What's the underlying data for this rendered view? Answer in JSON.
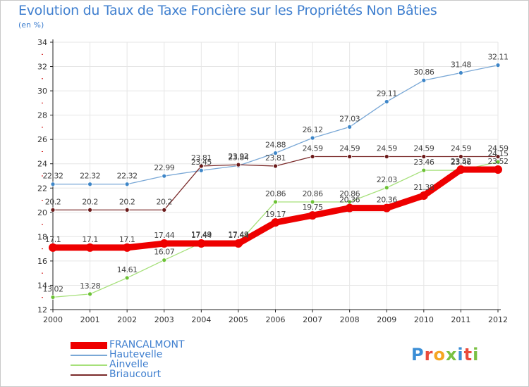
{
  "title": "Evolution du Taux de Taxe Foncière sur les Propriétés Non Bâties",
  "unit_label": "(en %)",
  "logo": {
    "text": "Proxiti",
    "colors": [
      "#3b8ed6",
      "#e94b3c",
      "#f5a623",
      "#7ac143",
      "#3b8ed6",
      "#e94b3c",
      "#7ac143"
    ]
  },
  "colors": {
    "grid": "#e6e6e6",
    "axis": "#222222",
    "tick_red": "#cc0000",
    "text": "#3f7fcf"
  },
  "legend": [
    {
      "label": "FRANCALMONT",
      "color": "#ee0000",
      "thickness": 10
    },
    {
      "label": "Hautevelle",
      "color": "#7aa8d6",
      "thickness": 2
    },
    {
      "label": "Ainvelle",
      "color": "#a6e07a",
      "thickness": 2
    },
    {
      "label": "Briaucourt",
      "color": "#7a2a2a",
      "thickness": 2
    }
  ],
  "chart_data": {
    "type": "line",
    "x": [
      "2000",
      "2001",
      "2002",
      "2003",
      "2004",
      "2005",
      "2006",
      "2007",
      "2008",
      "2009",
      "2010",
      "2011",
      "2012"
    ],
    "ylim": [
      12,
      34
    ],
    "yticks": [
      12,
      14,
      16,
      18,
      20,
      22,
      24,
      26,
      28,
      30,
      32,
      34
    ],
    "grid": true,
    "series": [
      {
        "name": "Hautevelle",
        "color": "#7aa8d6",
        "marker": "#3e86c8",
        "width": 1.3,
        "values": [
          22.32,
          22.32,
          22.32,
          22.99,
          23.45,
          23.84,
          24.88,
          26.12,
          27.03,
          29.11,
          30.86,
          31.48,
          32.11
        ],
        "labels": [
          "22.32",
          "22.32",
          "22.32",
          "22.99",
          "23.45",
          "23.84",
          "24.88",
          "26.12",
          "27.03",
          "29.11",
          "30.86",
          "31.48",
          "32.11"
        ]
      },
      {
        "name": "Briaucourt",
        "color": "#7a2a2a",
        "marker": "#6b1a1a",
        "width": 1.3,
        "values": [
          20.2,
          20.2,
          20.2,
          20.2,
          23.81,
          23.92,
          23.81,
          24.59,
          24.59,
          24.59,
          24.59,
          24.59,
          24.59
        ],
        "labels": [
          "20.2",
          "20.2",
          "20.2",
          "20.2",
          "23.81",
          "23.92",
          "23.81",
          "24.59",
          "24.59",
          "24.59",
          "24.59",
          "24.59",
          "24.59"
        ]
      },
      {
        "name": "Ainvelle",
        "color": "#a6e07a",
        "marker": "#6cc235",
        "width": 1.3,
        "values": [
          13.02,
          13.28,
          14.61,
          16.07,
          17.49,
          17.49,
          20.86,
          20.86,
          20.86,
          22.03,
          23.46,
          23.46,
          24.15
        ],
        "labels": [
          "13.02",
          "13.28",
          "14.61",
          "16.07",
          "17.49",
          "17.49",
          "20.86",
          "20.86",
          "20.86",
          "22.03",
          "23.46",
          "23.46",
          "24.15"
        ]
      },
      {
        "name": "FRANCALMONT",
        "color": "#ee0000",
        "marker": "#ee0000",
        "width": 9,
        "values": [
          17.1,
          17.1,
          17.1,
          17.44,
          17.44,
          17.44,
          19.17,
          19.75,
          20.36,
          20.36,
          21.38,
          23.52,
          23.52
        ],
        "labels": [
          "17.1",
          "17.1",
          "17.1",
          "17.44",
          "17.44",
          "17.44",
          "19.17",
          "19.75",
          "20.36",
          "20.36",
          "21.38",
          "23.52",
          "23.52"
        ]
      }
    ]
  }
}
